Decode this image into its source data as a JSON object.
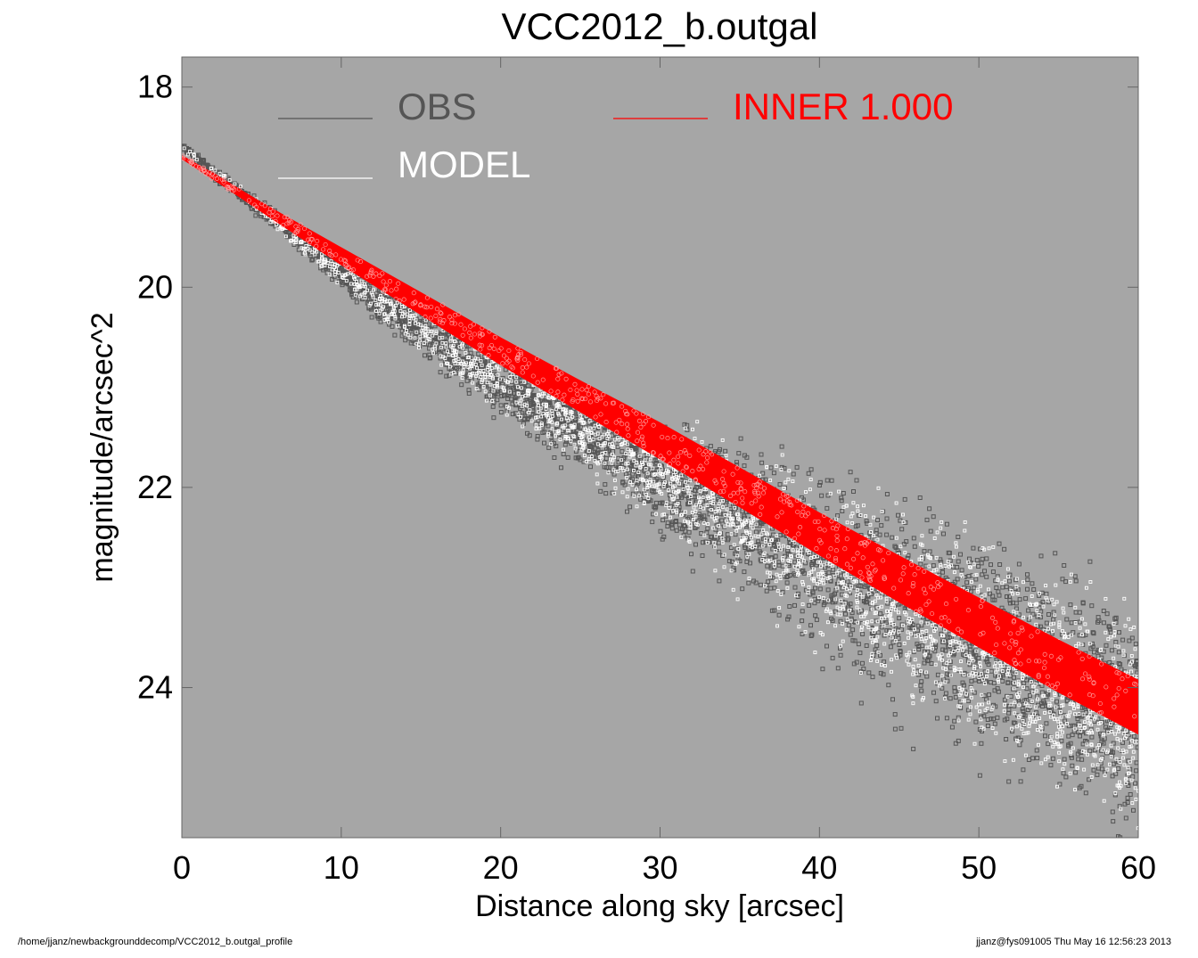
{
  "chart_data": {
    "type": "scatter",
    "title": "VCC2012_b.outgal",
    "xlabel": "Distance along sky [arcsec]",
    "ylabel": "magnitude/arcsec^2",
    "xlim": [
      0,
      60
    ],
    "ylim": [
      17.7,
      25.5
    ],
    "y_inverted": true,
    "x_ticks": [
      0,
      10,
      20,
      30,
      40,
      50,
      60
    ],
    "x_tick_labels": [
      "0",
      "10",
      "20",
      "30",
      "40",
      "50",
      "60"
    ],
    "y_ticks": [
      18,
      20,
      22,
      24
    ],
    "y_tick_labels": [
      "18",
      "20",
      "22",
      "24"
    ],
    "background_color": "#a6a6a6",
    "grid": false,
    "legend": {
      "placement": "top",
      "entries": [
        {
          "label": "OBS",
          "color": "#555555"
        },
        {
          "label": "MODEL",
          "color": "#ffffff"
        },
        {
          "label": "INNER  1.000",
          "color": "#ff0000"
        }
      ]
    },
    "series": [
      {
        "name": "OBS",
        "color": "#555555",
        "profile": {
          "x": [
            0,
            2,
            4,
            6,
            8,
            10,
            12,
            14,
            16,
            18,
            20,
            22,
            24,
            26,
            28,
            30,
            32,
            34,
            36,
            38,
            40,
            42,
            44,
            46,
            48,
            50,
            52,
            54,
            56,
            58,
            60
          ],
          "y_center": [
            18.6,
            18.85,
            19.1,
            19.35,
            19.6,
            19.85,
            20.1,
            20.32,
            20.55,
            20.75,
            20.95,
            21.15,
            21.33,
            21.52,
            21.7,
            21.88,
            22.05,
            22.22,
            22.4,
            22.57,
            22.73,
            22.9,
            23.07,
            23.23,
            23.4,
            23.56,
            23.72,
            23.88,
            24.03,
            24.18,
            24.33
          ],
          "spread": [
            0.05,
            0.1,
            0.12,
            0.15,
            0.2,
            0.25,
            0.3,
            0.35,
            0.4,
            0.45,
            0.5,
            0.55,
            0.6,
            0.7,
            0.8,
            0.9,
            1.0,
            1.1,
            1.2,
            1.3,
            1.4,
            1.5,
            1.6,
            1.65,
            1.7,
            1.75,
            1.8,
            1.85,
            1.9,
            1.95,
            2.0
          ]
        }
      },
      {
        "name": "MODEL",
        "color": "#ffffff",
        "profile": {
          "x": [
            0,
            10,
            20,
            30,
            40,
            50,
            60
          ],
          "y_center": [
            18.65,
            19.85,
            20.95,
            21.88,
            22.73,
            23.56,
            24.33
          ],
          "spread": [
            0.02,
            0.05,
            0.1,
            0.2,
            0.4,
            0.7,
            1.0
          ]
        }
      },
      {
        "name": "INNER  1.000",
        "color": "#ff0000",
        "band": {
          "x": [
            0,
            2,
            5,
            10,
            15,
            20,
            25,
            30,
            35,
            40,
            45,
            50,
            55,
            60
          ],
          "y_upper": [
            18.68,
            18.86,
            19.15,
            19.6,
            20.05,
            20.5,
            20.93,
            21.35,
            21.8,
            22.25,
            22.68,
            23.1,
            23.52,
            23.92
          ],
          "y_lower": [
            18.72,
            18.93,
            19.25,
            19.78,
            20.28,
            20.78,
            21.25,
            21.72,
            22.2,
            22.68,
            23.15,
            23.6,
            24.05,
            24.47
          ]
        }
      }
    ]
  },
  "footer": {
    "left": "/home/jjanz/newbackgrounddecomp/VCC2012_b.outgal_profile",
    "right": "jjanz@fys091005  Thu May 16 12:56:23 2013"
  }
}
